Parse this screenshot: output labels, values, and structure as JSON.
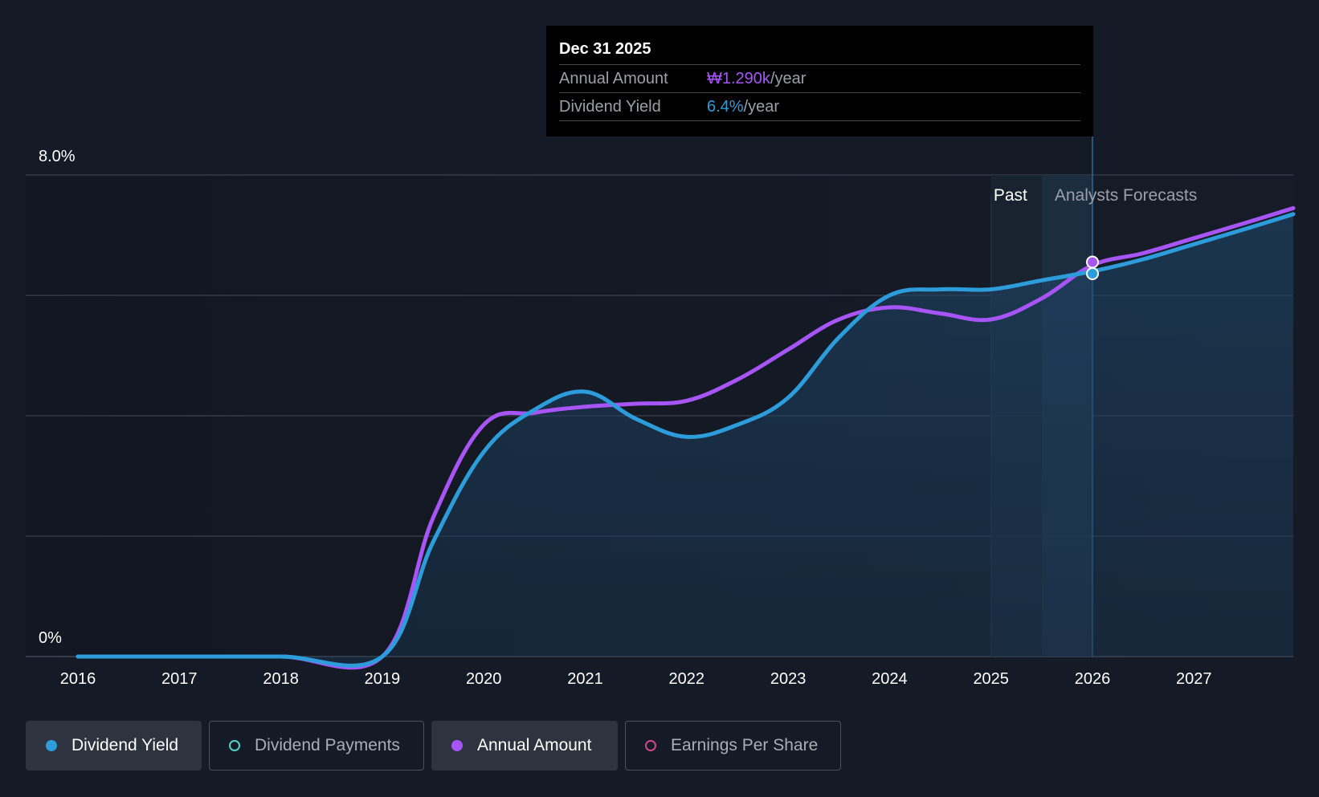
{
  "tooltip": {
    "date": "Dec 31 2025",
    "rows": [
      {
        "label": "Annual Amount",
        "value": "₩1.290k",
        "unit": "/year",
        "color": "#a855f7"
      },
      {
        "label": "Dividend Yield",
        "value": "6.4%",
        "unit": "/year",
        "color": "#2d9cdb"
      }
    ]
  },
  "regions": {
    "past": "Past",
    "forecast": "Analysts Forecasts"
  },
  "legend": [
    {
      "label": "Dividend Yield",
      "color": "#2d9cdb",
      "filled": true,
      "active": true
    },
    {
      "label": "Dividend Payments",
      "color": "#4fd1c5",
      "filled": false,
      "active": false
    },
    {
      "label": "Annual Amount",
      "color": "#a855f7",
      "filled": true,
      "active": true
    },
    {
      "label": "Earnings Per Share",
      "color": "#d1478f",
      "filled": false,
      "active": false
    }
  ],
  "colors": {
    "background": "#151b26",
    "yield": "#2d9cdb",
    "amount": "#a855f7",
    "grid": "#3a4150"
  },
  "chart_data": {
    "type": "area",
    "title": "",
    "xlabel": "",
    "ylabel": "",
    "ylim": [
      0,
      8
    ],
    "y_tick_labels": [
      "0%",
      "8.0%"
    ],
    "y_gridlines": [
      0,
      2,
      4,
      6,
      8
    ],
    "x_tick_labels": [
      "2016",
      "2017",
      "2018",
      "2019",
      "2020",
      "2021",
      "2022",
      "2023",
      "2024",
      "2025",
      "2026",
      "2027"
    ],
    "xlim": [
      2016,
      2028
    ],
    "past_end": 2026.0,
    "forecast_shade_start": 2025.5,
    "highlight_x": 2026.0,
    "grid": true,
    "legend_position": "bottom-left",
    "series": [
      {
        "name": "Dividend Yield",
        "x": [
          2016,
          2017,
          2018,
          2019,
          2019.5,
          2020,
          2020.5,
          2021,
          2021.5,
          2022,
          2022.5,
          2023,
          2023.5,
          2024,
          2024.5,
          2025,
          2025.5,
          2026,
          2026.5,
          2027,
          2027.5,
          2028
        ],
        "y": [
          0,
          0,
          0,
          0,
          1.9,
          3.4,
          4.1,
          4.4,
          3.95,
          3.65,
          3.85,
          4.3,
          5.3,
          6.0,
          6.1,
          6.1,
          6.25,
          6.4,
          6.6,
          6.85,
          7.1,
          7.35
        ]
      },
      {
        "name": "Annual Amount",
        "x": [
          2016,
          2017,
          2018,
          2019,
          2019.5,
          2020,
          2020.5,
          2021,
          2021.5,
          2022,
          2022.5,
          2023,
          2023.5,
          2024,
          2024.5,
          2025,
          2025.5,
          2026,
          2026.5,
          2027,
          2027.5,
          2028
        ],
        "y": [
          0,
          0,
          0,
          0,
          2.3,
          3.85,
          4.05,
          4.15,
          4.2,
          4.25,
          4.6,
          5.1,
          5.6,
          5.8,
          5.7,
          5.6,
          5.95,
          6.5,
          6.7,
          6.95,
          7.2,
          7.45
        ]
      }
    ]
  }
}
